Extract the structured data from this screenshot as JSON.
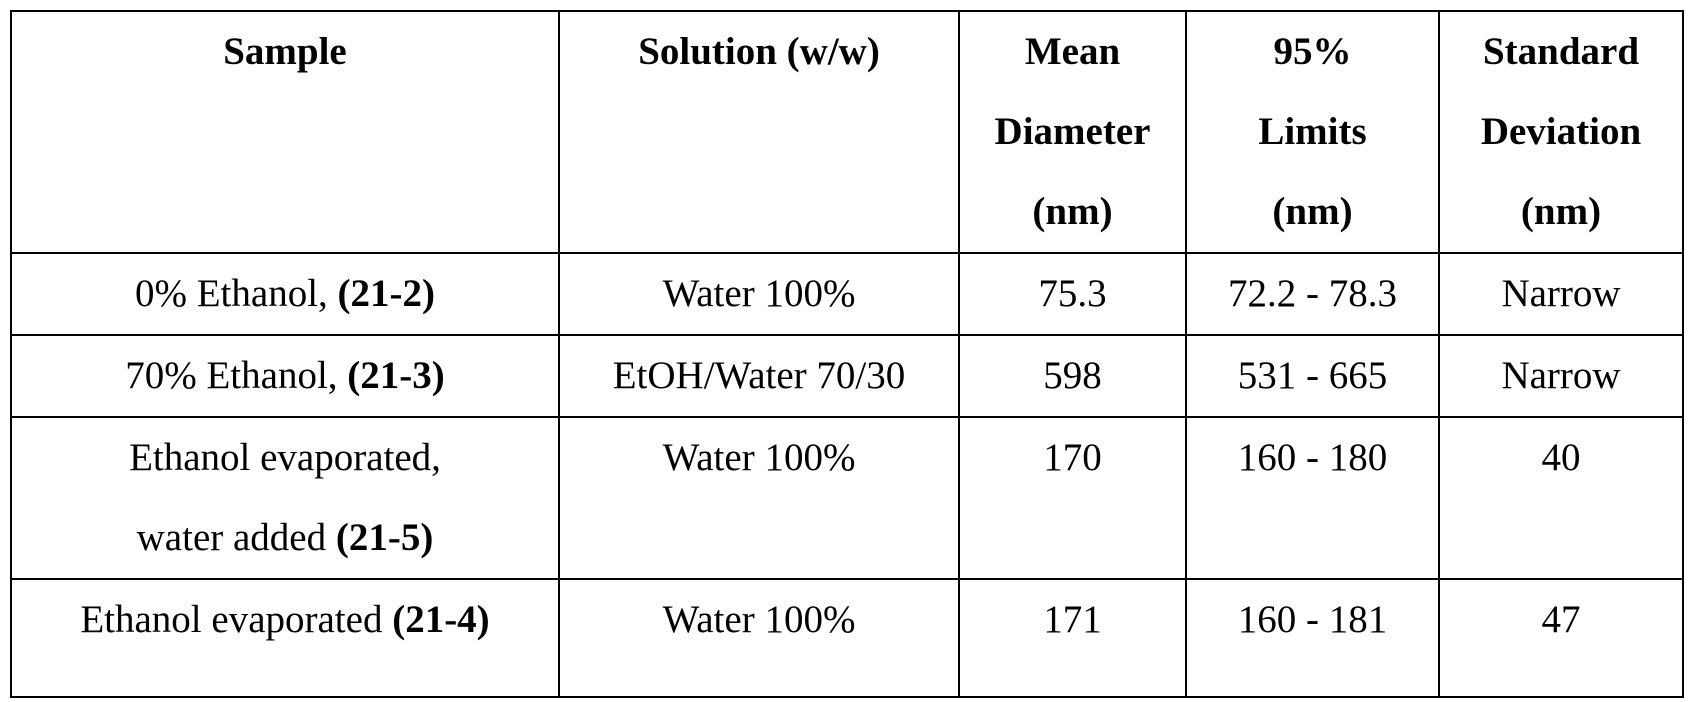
{
  "headers": {
    "sample": "Sample",
    "solution": "Solution (w/w)",
    "mean_diameter": [
      "Mean",
      "Diameter",
      "(nm)"
    ],
    "limits": [
      "95%",
      "Limits",
      "(nm)"
    ],
    "std_dev": [
      "Standard",
      "Deviation",
      "(nm)"
    ]
  },
  "rows": [
    {
      "sample_text": "0% Ethanol, ",
      "sample_id": "(21-2)",
      "solution": "Water 100%",
      "mean": "75.3",
      "limits": "72.2 - 78.3",
      "std": "Narrow"
    },
    {
      "sample_text": "70% Ethanol, ",
      "sample_id": "(21-3)",
      "solution": "EtOH/Water 70/30",
      "mean": "598",
      "limits": "531 - 665",
      "std": "Narrow"
    },
    {
      "sample_line1": "Ethanol evaporated,",
      "sample_text": "water added ",
      "sample_id": "(21-5)",
      "solution": "Water 100%",
      "mean": "170",
      "limits": "160 - 180",
      "std": "40"
    },
    {
      "sample_text": "Ethanol evaporated ",
      "sample_id": "(21-4)",
      "solution": "Water 100%",
      "mean": "171",
      "limits": "160 - 181",
      "std": "47"
    }
  ]
}
